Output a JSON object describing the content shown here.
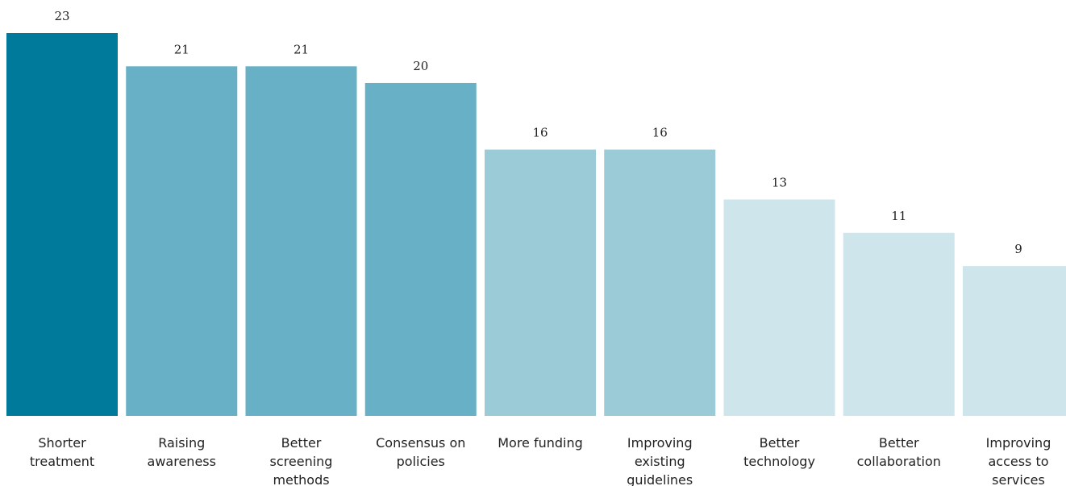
{
  "chart_data": {
    "type": "bar",
    "categories": [
      "Shorter treatment",
      "Raising awareness",
      "Better screening methods",
      "Consensus on policies",
      "More funding",
      "Improving existing guidelines",
      "Better technology",
      "Better collaboration",
      "Improving access to services"
    ],
    "category_label_lines": [
      [
        "Shorter",
        "treatment"
      ],
      [
        "Raising",
        "awareness"
      ],
      [
        "Better",
        "screening",
        "methods"
      ],
      [
        "Consensus on",
        "policies"
      ],
      [
        "More funding"
      ],
      [
        "Improving",
        "existing",
        "guidelines"
      ],
      [
        "Better",
        "technology"
      ],
      [
        "Better",
        "collaboration"
      ],
      [
        "Improving",
        "access to",
        "services"
      ]
    ],
    "values": [
      23,
      21,
      21,
      20,
      16,
      16,
      13,
      11,
      9
    ],
    "value_labels": [
      "23",
      "21",
      "21",
      "20",
      "16",
      "16",
      "13",
      "11",
      "9"
    ],
    "bar_colors": [
      "#007A9B",
      "#67B0C6",
      "#67B0C6",
      "#67B0C6",
      "#9CCBD8",
      "#9CCBD8",
      "#CEE5EC",
      "#CEE5EC",
      "#CEE5EC"
    ],
    "title": "",
    "xlabel": "",
    "ylabel": "",
    "ylim": [
      0,
      23
    ],
    "grid": false,
    "legend": "none"
  }
}
